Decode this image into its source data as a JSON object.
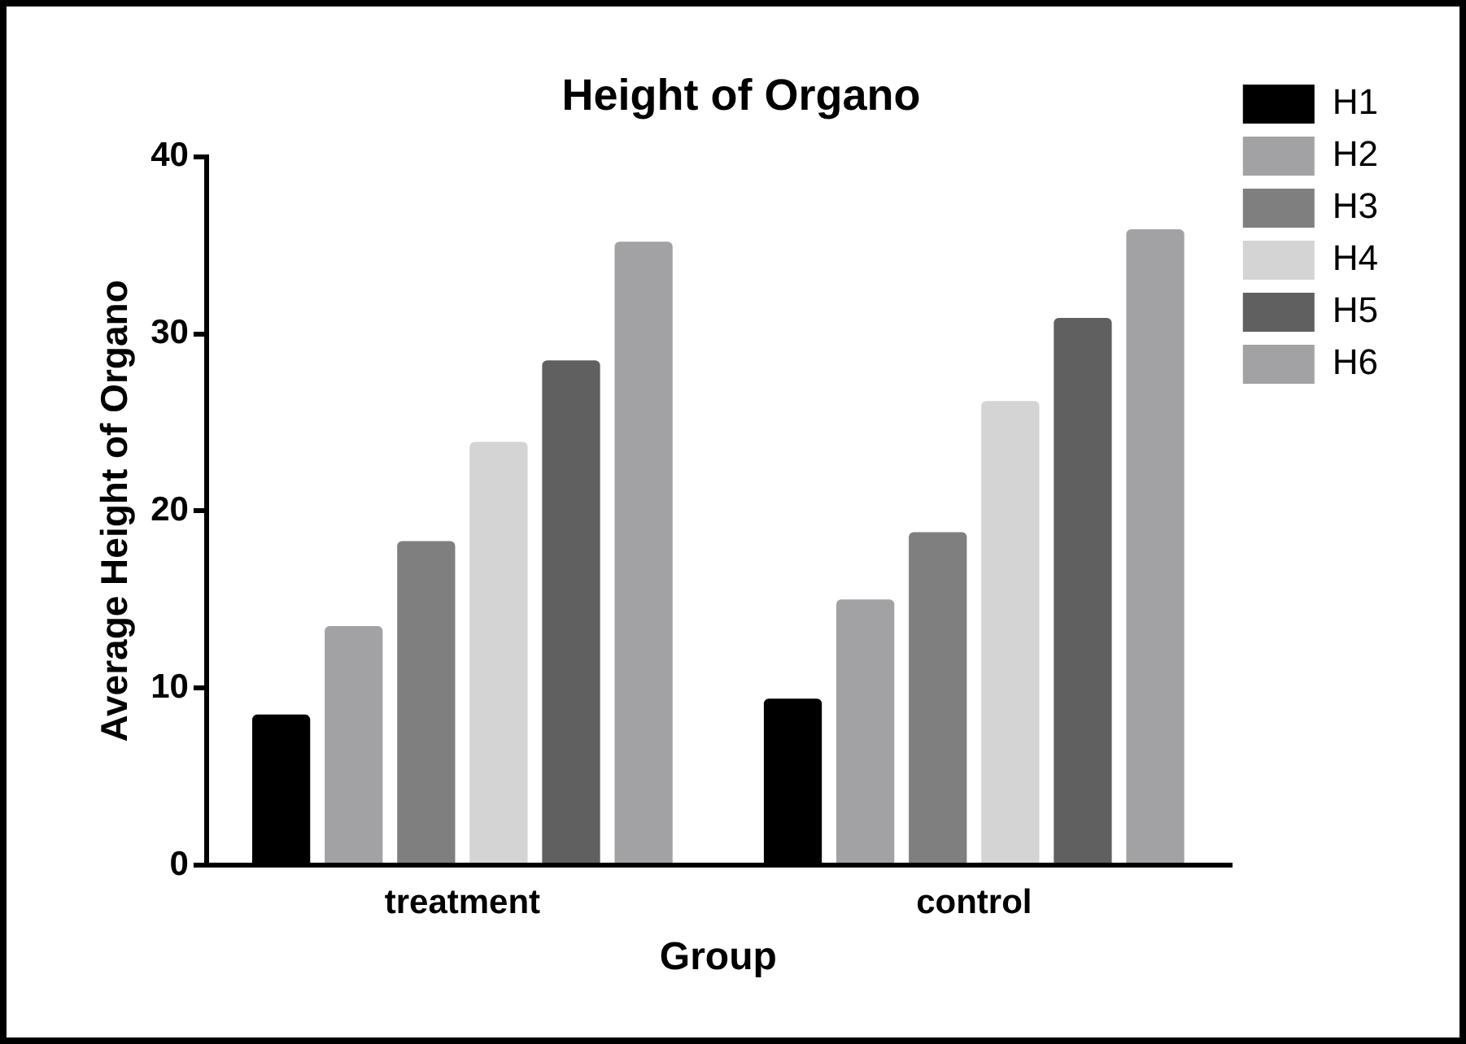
{
  "chart_data": {
    "type": "bar",
    "title": "Height of Organo",
    "xlabel": "Group",
    "ylabel": "Average Height of Organo",
    "categories": [
      "treatment",
      "control"
    ],
    "series": [
      {
        "name": "H1",
        "color": "#000000",
        "values": [
          8.5,
          9.4
        ]
      },
      {
        "name": "H2",
        "color": "#a2a2a4",
        "values": [
          13.5,
          15.0
        ]
      },
      {
        "name": "H3",
        "color": "#7f7f7f",
        "values": [
          18.3,
          18.8
        ]
      },
      {
        "name": "H4",
        "color": "#d4d4d4",
        "values": [
          23.9,
          26.2
        ]
      },
      {
        "name": "H5",
        "color": "#606060",
        "values": [
          28.5,
          30.9
        ]
      },
      {
        "name": "H6",
        "color": "#a2a2a4",
        "values": [
          35.2,
          35.9
        ]
      }
    ],
    "ylim": [
      0,
      40
    ],
    "yticks": [
      0,
      10,
      20,
      30,
      40
    ],
    "grid": false,
    "legend": "right"
  }
}
